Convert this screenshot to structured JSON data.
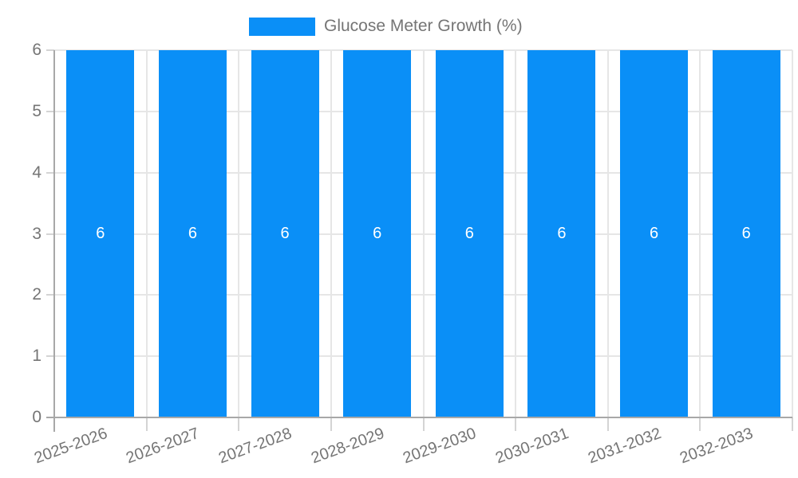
{
  "chart_data": {
    "type": "bar",
    "title": "",
    "xlabel": "",
    "ylabel": "",
    "categories": [
      "2025-2026",
      "2026-2027",
      "2027-2028",
      "2028-2029",
      "2029-2030",
      "2030-2031",
      "2031-2032",
      "2032-2033"
    ],
    "series": [
      {
        "name": "Glucose Meter Growth (%)",
        "color": "#0a8ff7",
        "values": [
          6,
          6,
          6,
          6,
          6,
          6,
          6,
          6
        ],
        "labels": [
          "6",
          "6",
          "6",
          "6",
          "6",
          "6",
          "6",
          "6"
        ]
      }
    ],
    "ylim": [
      0,
      6
    ],
    "yticks": [
      0,
      1,
      2,
      3,
      4,
      5,
      6
    ],
    "grid": true,
    "legend": {
      "position": "top",
      "label": "Glucose Meter Growth (%)"
    },
    "colors": {
      "bar": "#0a8ff7",
      "gridline": "#e6e6e6",
      "axis_line": "#a8a8a8",
      "tick_minor": "#d4d4d4",
      "axis_text": "#757575",
      "bar_label_text": "#ffffff",
      "background": "#ffffff"
    }
  }
}
